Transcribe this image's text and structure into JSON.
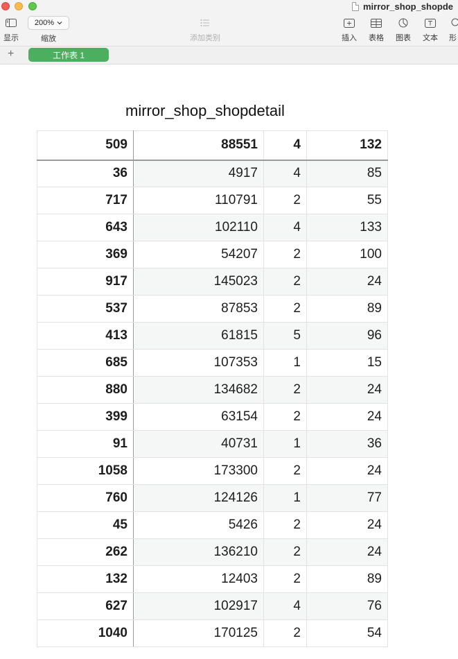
{
  "window": {
    "title": "mirror_shop_shopde"
  },
  "toolbar": {
    "view_label": "显示",
    "zoom_value": "200%",
    "zoom_label": "缩放",
    "category_label": "添加类别",
    "insert_label": "插入",
    "table_label": "表格",
    "chart_label": "图表",
    "text_label": "文本",
    "shape_label": "形"
  },
  "sheets": {
    "add_symbol": "+",
    "active_tab": "工作表 1"
  },
  "table": {
    "title": "mirror_shop_shopdetail",
    "header": [
      "509",
      "88551",
      "4",
      "132"
    ],
    "rows": [
      [
        "36",
        "4917",
        "4",
        "85"
      ],
      [
        "717",
        "110791",
        "2",
        "55"
      ],
      [
        "643",
        "102110",
        "4",
        "133"
      ],
      [
        "369",
        "54207",
        "2",
        "100"
      ],
      [
        "917",
        "145023",
        "2",
        "24"
      ],
      [
        "537",
        "87853",
        "2",
        "89"
      ],
      [
        "413",
        "61815",
        "5",
        "96"
      ],
      [
        "685",
        "107353",
        "1",
        "15"
      ],
      [
        "880",
        "134682",
        "2",
        "24"
      ],
      [
        "399",
        "63154",
        "2",
        "24"
      ],
      [
        "91",
        "40731",
        "1",
        "36"
      ],
      [
        "1058",
        "173300",
        "2",
        "24"
      ],
      [
        "760",
        "124126",
        "1",
        "77"
      ],
      [
        "45",
        "5426",
        "2",
        "24"
      ],
      [
        "262",
        "136210",
        "2",
        "24"
      ],
      [
        "132",
        "12403",
        "2",
        "89"
      ],
      [
        "627",
        "102917",
        "4",
        "76"
      ],
      [
        "1040",
        "170125",
        "2",
        "54"
      ]
    ]
  }
}
